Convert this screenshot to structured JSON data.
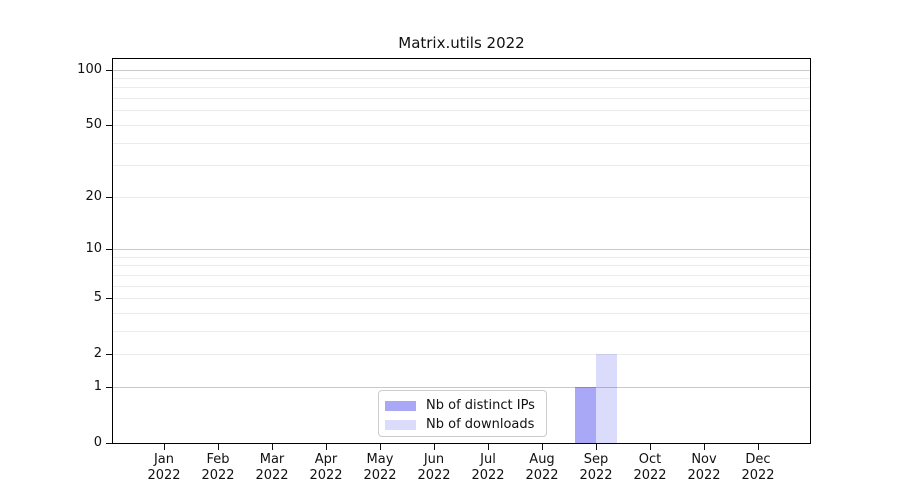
{
  "title": "Matrix.utils 2022",
  "chart_data": {
    "type": "bar",
    "title": "Matrix.utils 2022",
    "categories": [
      "Jan 2022",
      "Feb 2022",
      "Mar 2022",
      "Apr 2022",
      "May 2022",
      "Jun 2022",
      "Jul 2022",
      "Aug 2022",
      "Sep 2022",
      "Oct 2022",
      "Nov 2022",
      "Dec 2022"
    ],
    "series": [
      {
        "name": "Nb of distinct IPs",
        "color": "rgba(0,0,230,0.34)",
        "values": [
          0,
          0,
          0,
          0,
          0,
          0,
          0,
          0,
          1,
          0,
          0,
          0
        ]
      },
      {
        "name": "Nb of downloads",
        "color": "rgba(0,0,230,0.14)",
        "values": [
          0,
          0,
          0,
          0,
          0,
          0,
          0,
          0,
          2,
          0,
          0,
          0
        ]
      }
    ],
    "xlabel": "",
    "ylabel": "",
    "yscale": "log1p",
    "ylim": [
      0,
      115
    ],
    "y_tick_values": [
      0,
      1,
      2,
      5,
      10,
      20,
      50,
      100
    ],
    "y_major_gridlines": [
      1,
      10,
      100
    ],
    "y_minor_gridlines": [
      2,
      3,
      4,
      5,
      6,
      7,
      8,
      9,
      20,
      30,
      40,
      50,
      60,
      70,
      80,
      90
    ],
    "grid": "horizontal",
    "legend_position": "lower center"
  },
  "colors": {
    "major_grid": "#c9c9c9",
    "minor_grid": "#ececec",
    "spine": "#000000",
    "text": "#111111",
    "background": "#ffffff"
  }
}
